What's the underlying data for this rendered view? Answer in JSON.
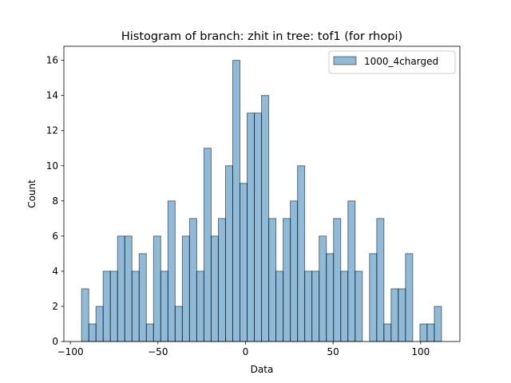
{
  "chart_data": {
    "type": "bar",
    "title": "Histogram of branch: zhit in tree: tof1 (for rhopi)",
    "xlabel": "Data",
    "ylabel": "Count",
    "xlim": [
      -103.7,
      122.4
    ],
    "ylim": [
      0,
      16.8
    ],
    "x_ticks": [
      -100,
      -50,
      0,
      50,
      100
    ],
    "y_ticks": [
      0,
      2,
      4,
      6,
      8,
      10,
      12,
      14,
      16
    ],
    "grid": false,
    "legend_position": "top-right",
    "bar_color": "#1f77b4",
    "bar_alpha": 0.5,
    "edge_color": "#000000",
    "bin_edges_start": -93.6,
    "bin_width": 4.11,
    "series": [
      {
        "name": "1000_4charged",
        "values": [
          3,
          1,
          2,
          4,
          4,
          6,
          6,
          4,
          5,
          1,
          6,
          4,
          8,
          2,
          6,
          7,
          4,
          11,
          6,
          7,
          10,
          16,
          9,
          13,
          13,
          14,
          7,
          4,
          7,
          8,
          10,
          4,
          4,
          6,
          5,
          7,
          4,
          8,
          4,
          0,
          5,
          7,
          1,
          3,
          3,
          5,
          0,
          1,
          1,
          2
        ]
      }
    ]
  }
}
